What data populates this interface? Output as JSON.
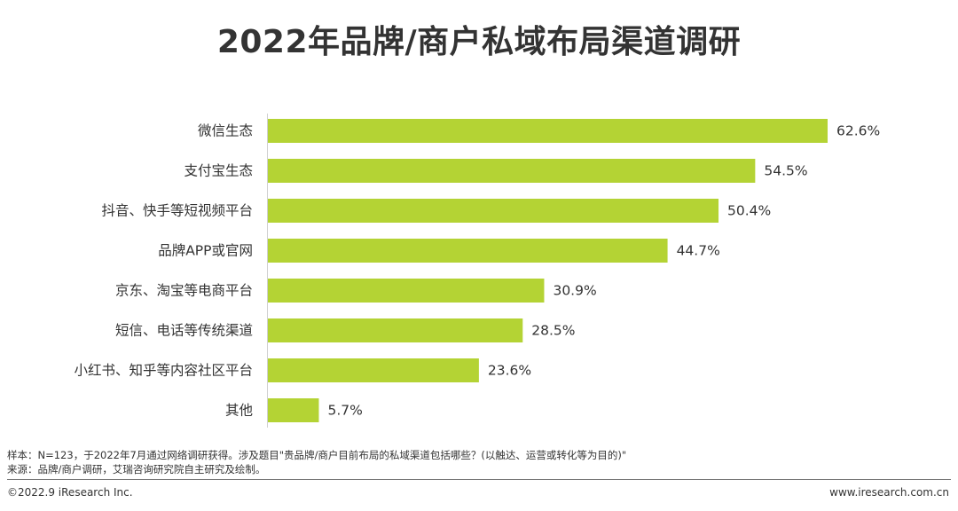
{
  "title": "2022年品牌/商户私域布局渠道调研",
  "chart_data": {
    "type": "bar",
    "orientation": "horizontal",
    "categories": [
      "微信生态",
      "支付宝生态",
      "抖音、快手等短视频平台",
      "品牌APP或官网",
      "京东、淘宝等电商平台",
      "短信、电话等传统渠道",
      "小红书、知乎等内容社区平台",
      "其他"
    ],
    "values": [
      62.6,
      54.5,
      50.4,
      44.7,
      30.9,
      28.5,
      23.6,
      5.7
    ],
    "value_labels": [
      "62.6%",
      "54.5%",
      "50.4%",
      "44.7%",
      "30.9%",
      "28.5%",
      "23.6%",
      "5.7%"
    ],
    "xlim": [
      0,
      62.6
    ],
    "bar_color": "#b4d334",
    "grid": false,
    "legend": "none"
  },
  "footnotes": {
    "sample": "样本：N=123，于2022年7月通过网络调研获得。涉及题目\"贵品牌/商户目前布局的私域渠道包括哪些？(以触达、运营或转化等为目的)\"",
    "source": "来源：品牌/商户调研，艾瑞咨询研究院自主研究及绘制。"
  },
  "footer": {
    "copyright": "©2022.9 iResearch Inc.",
    "website": "www.iresearch.com.cn"
  }
}
